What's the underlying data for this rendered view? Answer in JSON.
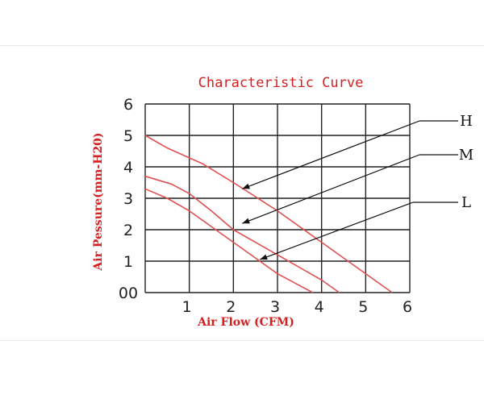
{
  "chart_data": {
    "type": "line",
    "title": "Characteristic Curve",
    "xlabel": "Air Flow (CFM)",
    "ylabel": "Air Pessure(mm-H20)",
    "xlim": [
      0,
      6
    ],
    "ylim": [
      0,
      6
    ],
    "x_ticks": [
      "1",
      "2",
      "3",
      "4",
      "5",
      "6"
    ],
    "y_ticks": [
      "00",
      "1",
      "2",
      "3",
      "4",
      "5",
      "6"
    ],
    "grid": true,
    "colors": {
      "curve": "#e05050",
      "grid": "#222222",
      "text": "#d42020",
      "pointer": "#111111"
    },
    "series": [
      {
        "name": "H",
        "x": [
          0,
          0.5,
          1.3,
          2.0,
          3.0,
          4.0,
          5.0,
          5.6
        ],
        "y": [
          5.0,
          4.6,
          4.1,
          3.5,
          2.6,
          1.6,
          0.6,
          0
        ]
      },
      {
        "name": "M",
        "x": [
          0,
          0.6,
          1.0,
          1.5,
          2.0,
          2.5,
          3.0,
          3.5,
          4.0,
          4.4
        ],
        "y": [
          3.7,
          3.45,
          3.15,
          2.6,
          2.0,
          1.6,
          1.2,
          0.8,
          0.4,
          0
        ]
      },
      {
        "name": "L",
        "x": [
          0,
          0.5,
          1.0,
          1.5,
          2.0,
          2.5,
          3.0,
          3.4,
          3.8
        ],
        "y": [
          3.3,
          3.0,
          2.6,
          2.1,
          1.6,
          1.1,
          0.6,
          0.3,
          0
        ]
      }
    ],
    "pointers": [
      {
        "series": "H",
        "target": [
          2.2,
          3.3
        ]
      },
      {
        "series": "M",
        "target": [
          2.2,
          2.2
        ]
      },
      {
        "series": "L",
        "target": [
          2.6,
          1.05
        ]
      }
    ]
  }
}
